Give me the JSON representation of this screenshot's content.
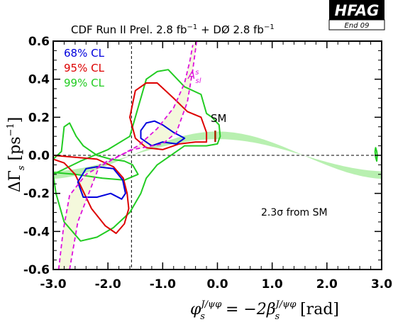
{
  "header": {
    "title_main": "CDF  Run II Prel. 2.8 fb",
    "title_mid": " + DØ  2.8 fb",
    "exp": "−1"
  },
  "logo": {
    "text": "HFAG",
    "subtext": "End 09",
    "bg": "#000000",
    "fg": "#ffffff"
  },
  "colors": {
    "cl68": "#0000dd",
    "cl95": "#dd0000",
    "cl99": "#22cc22",
    "band": "#b8f0b0",
    "asl_line": "#dd11dd",
    "asl_fill": "#f4f8dc",
    "sm_bar": "#aa2200"
  },
  "chart_data": {
    "type": "contour",
    "xlim": [
      -3.0,
      3.0
    ],
    "ylim": [
      -0.6,
      0.6
    ],
    "x_ticks": [
      -3.0,
      -2.0,
      -1.0,
      0.0,
      1.0,
      2.0,
      3.0
    ],
    "x_tick_labels": [
      "-3.0",
      "-2.0",
      "-1.0",
      "0.0",
      "1.0",
      "2.0",
      "3.0"
    ],
    "y_ticks": [
      -0.6,
      -0.4,
      -0.2,
      0.0,
      0.2,
      0.4,
      0.6
    ],
    "y_tick_labels": [
      "-0.6",
      "-0.4",
      "-0.2",
      "0.0",
      "0.2",
      "0.4",
      "0.6"
    ],
    "xlabel_parts": [
      "φ",
      "J/ψφ",
      "s",
      " = −2β",
      "J/ψφ",
      "s",
      " [rad]"
    ],
    "ylabel_parts": [
      "ΔΓ",
      "s",
      " [ps",
      "−1",
      "]"
    ],
    "legend": [
      {
        "label": "68% CL",
        "color": "#0000dd"
      },
      {
        "label": "95% CL",
        "color": "#dd0000"
      },
      {
        "label": "99% CL",
        "color": "#22cc22"
      }
    ],
    "vline_x": -1.57,
    "hline_y": 0.0,
    "sm_point": {
      "x": -0.04,
      "y": 0.1,
      "label": "SM"
    },
    "asl_label": {
      "base": "A",
      "sup": "s",
      "sub": "sl"
    },
    "annotation": "2.3σ  from SM",
    "contours": {
      "cl99": [
        [
          [
            -3.0,
            -0.1
          ],
          [
            -2.5,
            -0.03
          ],
          [
            -2.0,
            0.03
          ],
          [
            -1.6,
            0.1
          ],
          [
            -1.3,
            0.4
          ],
          [
            -1.1,
            0.44
          ],
          [
            -0.9,
            0.45
          ],
          [
            -0.6,
            0.36
          ],
          [
            -0.3,
            0.32
          ],
          [
            -0.2,
            0.22
          ],
          [
            -0.1,
            0.2
          ],
          [
            0.03,
            0.16
          ],
          [
            0.05,
            0.1
          ],
          [
            0.0,
            0.06
          ],
          [
            -0.2,
            0.05
          ],
          [
            -0.6,
            0.05
          ],
          [
            -0.8,
            0.01
          ],
          [
            -1.1,
            -0.05
          ],
          [
            -1.3,
            -0.12
          ],
          [
            -1.4,
            -0.2
          ],
          [
            -1.6,
            -0.3
          ],
          [
            -1.9,
            -0.38
          ],
          [
            -2.2,
            -0.43
          ],
          [
            -2.5,
            -0.45
          ],
          [
            -2.8,
            -0.35
          ],
          [
            -2.95,
            -0.2
          ],
          [
            -3.0,
            -0.1
          ]
        ],
        [
          [
            -3.0,
            -0.02
          ],
          [
            -2.85,
            0.02
          ],
          [
            -2.8,
            0.15
          ],
          [
            -2.7,
            0.17
          ],
          [
            -2.58,
            0.1
          ],
          [
            -2.45,
            0.05
          ],
          [
            -2.2,
            0.0
          ],
          [
            -1.95,
            -0.02
          ],
          [
            -1.7,
            -0.03
          ],
          [
            -1.55,
            -0.05
          ],
          [
            -1.45,
            -0.1
          ],
          [
            -1.7,
            -0.13
          ],
          [
            -2.1,
            -0.12
          ],
          [
            -2.6,
            -0.1
          ],
          [
            -3.0,
            -0.09
          ]
        ],
        [
          [
            2.89,
            0.04
          ],
          [
            2.91,
            0.02
          ],
          [
            2.92,
            0.0
          ],
          [
            2.91,
            -0.03
          ],
          [
            2.89,
            -0.01
          ],
          [
            2.88,
            0.02
          ],
          [
            2.89,
            0.04
          ]
        ]
      ],
      "cl95": [
        [
          [
            -1.6,
            0.2
          ],
          [
            -1.5,
            0.34
          ],
          [
            -1.3,
            0.38
          ],
          [
            -1.1,
            0.38
          ],
          [
            -0.8,
            0.3
          ],
          [
            -0.55,
            0.23
          ],
          [
            -0.3,
            0.2
          ],
          [
            -0.2,
            0.12
          ],
          [
            -0.2,
            0.07
          ],
          [
            -0.4,
            0.07
          ],
          [
            -0.7,
            0.06
          ],
          [
            -1.0,
            0.03
          ],
          [
            -1.3,
            0.04
          ],
          [
            -1.5,
            0.09
          ],
          [
            -1.6,
            0.2
          ]
        ],
        [
          [
            -3.0,
            0.0
          ],
          [
            -2.6,
            -0.01
          ],
          [
            -2.2,
            -0.02
          ],
          [
            -1.9,
            -0.06
          ],
          [
            -1.72,
            -0.12
          ],
          [
            -1.65,
            -0.2
          ],
          [
            -1.62,
            -0.28
          ],
          [
            -1.7,
            -0.36
          ],
          [
            -1.85,
            -0.41
          ],
          [
            -2.05,
            -0.37
          ],
          [
            -2.3,
            -0.28
          ],
          [
            -2.6,
            -0.1
          ],
          [
            -2.8,
            -0.04
          ],
          [
            -3.0,
            -0.02
          ]
        ]
      ],
      "cl68": [
        [
          [
            -1.4,
            0.13
          ],
          [
            -1.3,
            0.17
          ],
          [
            -1.15,
            0.18
          ],
          [
            -1.0,
            0.16
          ],
          [
            -0.8,
            0.12
          ],
          [
            -0.6,
            0.09
          ],
          [
            -0.75,
            0.06
          ],
          [
            -1.0,
            0.07
          ],
          [
            -1.2,
            0.05
          ],
          [
            -1.4,
            0.09
          ],
          [
            -1.4,
            0.13
          ]
        ],
        [
          [
            -2.55,
            -0.14
          ],
          [
            -2.4,
            -0.07
          ],
          [
            -2.2,
            -0.06
          ],
          [
            -1.9,
            -0.07
          ],
          [
            -1.73,
            -0.13
          ],
          [
            -1.68,
            -0.2
          ],
          [
            -1.75,
            -0.23
          ],
          [
            -1.95,
            -0.2
          ],
          [
            -2.2,
            -0.22
          ],
          [
            -2.45,
            -0.22
          ],
          [
            -2.55,
            -0.14
          ]
        ]
      ]
    },
    "asl_curves": [
      [
        [
          -2.9,
          -0.6
        ],
        [
          -2.82,
          -0.4
        ],
        [
          -2.7,
          -0.21
        ],
        [
          -2.4,
          -0.1
        ],
        [
          -1.9,
          -0.02
        ],
        [
          -1.45,
          0.05
        ],
        [
          -1.1,
          0.14
        ],
        [
          -0.8,
          0.25
        ],
        [
          -0.6,
          0.38
        ],
        [
          -0.5,
          0.5
        ],
        [
          -0.45,
          0.58
        ]
      ],
      [
        [
          -2.7,
          -0.6
        ],
        [
          -2.55,
          -0.35
        ],
        [
          -2.15,
          -0.05
        ],
        [
          -1.55,
          0.03
        ],
        [
          -1.0,
          0.06
        ],
        [
          -0.75,
          0.12
        ],
        [
          -0.55,
          0.28
        ],
        [
          -0.45,
          0.45
        ],
        [
          -0.38,
          0.6
        ]
      ]
    ],
    "band": {
      "amp_upper": 0.125,
      "amp_lower": 0.085,
      "phase": 1.57
    }
  }
}
